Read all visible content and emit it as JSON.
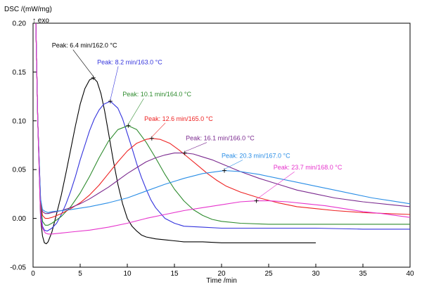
{
  "chart_data": {
    "type": "line",
    "ylabel": "DSC /(mW/mg)",
    "xlabel": "Time /min",
    "exo_label": "↑ exo",
    "xlim": [
      0,
      40
    ],
    "ylim": [
      -0.05,
      0.2
    ],
    "xticks": [
      0,
      5,
      10,
      15,
      20,
      25,
      30,
      35,
      40
    ],
    "yticks": [
      -0.05,
      0.0,
      0.05,
      0.1,
      0.15,
      0.2
    ],
    "ytick_labels": [
      "-0.05",
      "0.00",
      "0.05",
      "0.10",
      "0.15",
      "0.20"
    ],
    "grid": false,
    "series": [
      {
        "label": "Peak: 6.4 min/162.0 °C",
        "color": "#000000",
        "peak": [
          6.4,
          0.144
        ],
        "label_anchor": [
          2.0,
          0.175
        ],
        "x": [
          0.3,
          0.5,
          0.8,
          1.0,
          1.2,
          1.4,
          1.6,
          2.0,
          2.5,
          3.0,
          3.5,
          4.0,
          4.5,
          5.0,
          5.5,
          6.0,
          6.4,
          6.8,
          7.2,
          7.6,
          8.0,
          8.5,
          9.0,
          9.5,
          10.0,
          10.5,
          11.0,
          11.5,
          12.0,
          13.0,
          14.0,
          15.0,
          16.0,
          18.0,
          20.0,
          22.0,
          24.0,
          26.0,
          28.0,
          30.0
        ],
        "y": [
          0.2,
          0.1,
          0.0,
          -0.018,
          -0.025,
          -0.026,
          -0.024,
          -0.014,
          0.005,
          0.024,
          0.047,
          0.071,
          0.095,
          0.117,
          0.133,
          0.142,
          0.144,
          0.14,
          0.128,
          0.11,
          0.088,
          0.06,
          0.035,
          0.015,
          0.0,
          -0.008,
          -0.013,
          -0.017,
          -0.019,
          -0.021,
          -0.022,
          -0.023,
          -0.024,
          -0.024,
          -0.025,
          -0.025,
          -0.025,
          -0.025,
          -0.025,
          -0.025
        ]
      },
      {
        "label": "Peak: 8.2 min/163.0 °C",
        "color": "#3333dd",
        "peak": [
          8.2,
          0.12
        ],
        "label_anchor": [
          6.8,
          0.158
        ],
        "x": [
          0.3,
          0.5,
          0.8,
          1.0,
          1.2,
          1.5,
          2.0,
          2.5,
          3.0,
          3.5,
          4.0,
          4.5,
          5.0,
          5.5,
          6.0,
          6.5,
          7.0,
          7.5,
          8.2,
          9.0,
          9.5,
          10.0,
          10.5,
          11.0,
          11.5,
          12.0,
          12.5,
          13.0,
          14.0,
          15.0,
          16.0,
          18.0,
          20.0,
          25.0,
          30.0,
          35.0,
          40.0
        ],
        "y": [
          0.2,
          0.1,
          0.01,
          -0.008,
          -0.012,
          -0.013,
          -0.01,
          -0.005,
          0.004,
          0.015,
          0.028,
          0.043,
          0.06,
          0.075,
          0.09,
          0.102,
          0.111,
          0.117,
          0.12,
          0.113,
          0.102,
          0.087,
          0.072,
          0.056,
          0.042,
          0.03,
          0.019,
          0.011,
          0.0,
          -0.005,
          -0.008,
          -0.009,
          -0.01,
          -0.01,
          -0.01,
          -0.011,
          -0.011
        ]
      },
      {
        "label": "Peak: 10.1 min/164.0 °C",
        "color": "#2e8b2e",
        "peak": [
          10.1,
          0.095
        ],
        "label_anchor": [
          9.5,
          0.125
        ],
        "x": [
          0.3,
          0.5,
          0.8,
          1.0,
          1.3,
          1.6,
          2.0,
          3.0,
          4.0,
          5.0,
          6.0,
          7.0,
          8.0,
          9.0,
          10.1,
          11.0,
          12.0,
          13.0,
          14.0,
          15.0,
          16.0,
          17.0,
          18.0,
          19.0,
          20.0,
          22.0,
          25.0,
          30.0,
          35.0,
          40.0
        ],
        "y": [
          0.2,
          0.1,
          0.015,
          -0.003,
          -0.007,
          -0.007,
          -0.005,
          0.002,
          0.012,
          0.026,
          0.043,
          0.062,
          0.079,
          0.091,
          0.095,
          0.091,
          0.078,
          0.062,
          0.045,
          0.03,
          0.018,
          0.009,
          0.003,
          -0.001,
          -0.003,
          -0.005,
          -0.006,
          -0.006,
          -0.006,
          -0.006
        ]
      },
      {
        "label": "Peak: 12.6 min/165.0 °C",
        "color": "#ee2222",
        "peak": [
          12.6,
          0.082
        ],
        "label_anchor": [
          11.8,
          0.1
        ],
        "x": [
          0.3,
          0.5,
          0.8,
          1.0,
          1.3,
          1.6,
          2.0,
          3.0,
          4.0,
          5.0,
          6.0,
          7.0,
          8.0,
          9.0,
          10.0,
          11.0,
          12.0,
          12.6,
          13.5,
          14.5,
          15.5,
          16.5,
          17.5,
          18.5,
          19.5,
          20.5,
          22.0,
          24.0,
          26.0,
          28.0,
          30.0,
          32.0,
          35.0,
          40.0
        ],
        "y": [
          0.2,
          0.1,
          0.018,
          0.003,
          0.0,
          0.0,
          0.001,
          0.005,
          0.01,
          0.016,
          0.024,
          0.034,
          0.046,
          0.058,
          0.069,
          0.077,
          0.081,
          0.082,
          0.081,
          0.077,
          0.07,
          0.062,
          0.054,
          0.046,
          0.039,
          0.033,
          0.027,
          0.021,
          0.016,
          0.012,
          0.01,
          0.008,
          0.006,
          0.004
        ]
      },
      {
        "label": "Peak: 16.1 min/166.0 °C",
        "color": "#7b2a8f",
        "peak": [
          16.1,
          0.067
        ],
        "label_anchor": [
          16.2,
          0.08
        ],
        "x": [
          0.3,
          0.5,
          0.8,
          1.0,
          1.3,
          1.6,
          2.0,
          3.0,
          4.0,
          5.0,
          6.0,
          7.0,
          8.0,
          9.0,
          10.0,
          11.0,
          12.0,
          13.0,
          14.0,
          15.0,
          16.1,
          17.0,
          18.0,
          19.0,
          20.0,
          22.0,
          24.0,
          26.0,
          28.0,
          30.0,
          32.0,
          35.0,
          38.0,
          40.0
        ],
        "y": [
          0.2,
          0.1,
          0.02,
          0.007,
          0.005,
          0.005,
          0.006,
          0.008,
          0.011,
          0.015,
          0.02,
          0.026,
          0.032,
          0.039,
          0.046,
          0.052,
          0.058,
          0.062,
          0.065,
          0.067,
          0.067,
          0.066,
          0.063,
          0.06,
          0.056,
          0.048,
          0.041,
          0.035,
          0.029,
          0.025,
          0.021,
          0.017,
          0.014,
          0.012
        ]
      },
      {
        "label": "Peak: 20.3 min/167.0 °C",
        "color": "#2a8ee6",
        "peak": [
          20.3,
          0.049
        ],
        "label_anchor": [
          20.0,
          0.062
        ],
        "x": [
          0.3,
          0.5,
          0.8,
          1.0,
          1.3,
          1.6,
          2.0,
          3.0,
          4.0,
          6.0,
          8.0,
          10.0,
          12.0,
          14.0,
          16.0,
          18.0,
          20.3,
          22.0,
          24.0,
          26.0,
          28.0,
          30.0,
          32.0,
          34.0,
          36.0,
          38.0,
          40.0
        ],
        "y": [
          0.2,
          0.1,
          0.02,
          0.009,
          0.007,
          0.006,
          0.007,
          0.008,
          0.009,
          0.012,
          0.016,
          0.021,
          0.028,
          0.035,
          0.041,
          0.046,
          0.049,
          0.048,
          0.045,
          0.041,
          0.037,
          0.033,
          0.029,
          0.025,
          0.021,
          0.018,
          0.015
        ]
      },
      {
        "label": "Peak: 23.7 min/168.0 °C",
        "color": "#e633cc",
        "peak": [
          23.7,
          0.018
        ],
        "label_anchor": [
          25.5,
          0.05
        ],
        "x": [
          0.3,
          0.5,
          0.8,
          1.0,
          1.3,
          1.6,
          2.0,
          3.0,
          4.0,
          6.0,
          8.0,
          10.0,
          12.0,
          14.0,
          16.0,
          18.0,
          20.0,
          22.0,
          23.7,
          25.0,
          27.0,
          29.0,
          31.0,
          33.0,
          35.0,
          37.0,
          40.0
        ],
        "y": [
          0.2,
          0.1,
          0.0,
          -0.01,
          -0.015,
          -0.016,
          -0.016,
          -0.015,
          -0.014,
          -0.012,
          -0.009,
          -0.005,
          0.0,
          0.004,
          0.008,
          0.011,
          0.014,
          0.017,
          0.018,
          0.018,
          0.017,
          0.015,
          0.013,
          0.01,
          0.007,
          0.005,
          0.001
        ]
      }
    ]
  }
}
